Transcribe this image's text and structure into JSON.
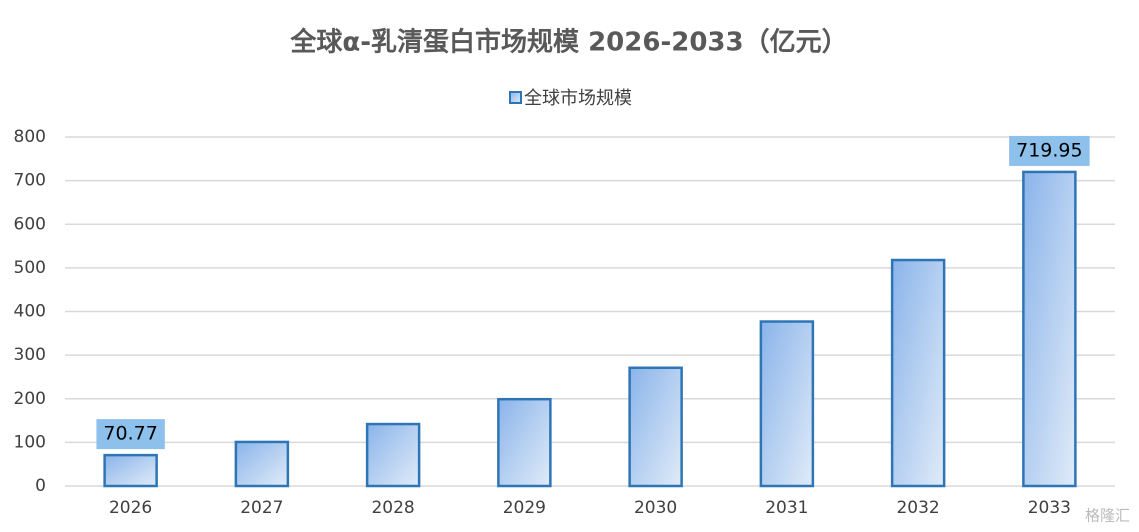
{
  "chart_data": {
    "type": "bar",
    "title": "全球α-乳清蛋白市场规模 2026-2033（亿元）",
    "categories": [
      "2026",
      "2027",
      "2028",
      "2029",
      "2030",
      "2031",
      "2032",
      "2033"
    ],
    "series": [
      {
        "name": "全球市场规模",
        "color": "#2e75b6",
        "values": [
          70.77,
          101,
          142,
          199,
          271,
          377,
          518,
          719.95
        ],
        "value_labels": [
          "70.77",
          null,
          null,
          null,
          null,
          null,
          null,
          "719.95"
        ]
      }
    ],
    "ylim": [
      0,
      800
    ],
    "yticks": [
      0,
      100,
      200,
      300,
      400,
      500,
      600,
      700,
      800
    ],
    "grid": true,
    "legend": "top",
    "watermark": "格隆汇"
  }
}
